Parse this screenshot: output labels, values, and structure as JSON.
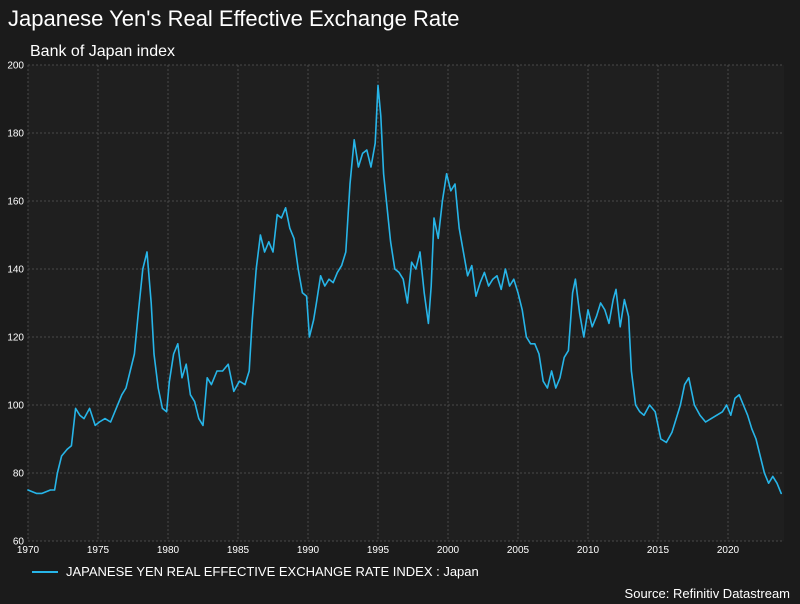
{
  "title": "Japanese Yen's Real Effective Exchange Rate",
  "subtitle": "Bank of Japan index",
  "source": "Source: Refinitiv Datastream",
  "colors": {
    "background": "#1b1b1b",
    "plot_background": "#1f1f1f",
    "grid": "#4a4a4a",
    "series": "#27b5e8"
  },
  "chart_data": {
    "type": "line",
    "title": "Japanese Yen's Real Effective Exchange Rate",
    "subtitle": "Bank of Japan index",
    "xlabel": "",
    "ylabel": "",
    "xlim": [
      1970,
      2024
    ],
    "ylim": [
      60,
      200
    ],
    "x_ticks": [
      1970,
      1975,
      1980,
      1985,
      1990,
      1995,
      2000,
      2005,
      2010,
      2015,
      2020
    ],
    "y_ticks": [
      60,
      80,
      100,
      120,
      140,
      160,
      180,
      200
    ],
    "grid": true,
    "legend_position": "bottom-left",
    "series": [
      {
        "name": "JAPANESE YEN REAL EFFECTIVE EXCHANGE RATE INDEX : Japan",
        "color": "#27b5e8",
        "x": [
          1970.0,
          1970.6,
          1971.0,
          1971.6,
          1971.9,
          1972.1,
          1972.4,
          1972.8,
          1973.1,
          1973.4,
          1973.7,
          1974.0,
          1974.4,
          1974.8,
          1975.1,
          1975.5,
          1975.9,
          1976.3,
          1976.7,
          1977.0,
          1977.3,
          1977.6,
          1977.9,
          1978.2,
          1978.5,
          1978.8,
          1979.0,
          1979.3,
          1979.6,
          1979.9,
          1980.1,
          1980.4,
          1980.7,
          1981.0,
          1981.3,
          1981.6,
          1981.9,
          1982.2,
          1982.5,
          1982.8,
          1983.1,
          1983.5,
          1983.9,
          1984.3,
          1984.7,
          1985.1,
          1985.5,
          1985.8,
          1986.0,
          1986.3,
          1986.6,
          1986.9,
          1987.2,
          1987.5,
          1987.8,
          1988.1,
          1988.4,
          1988.7,
          1989.0,
          1989.3,
          1989.6,
          1989.9,
          1990.1,
          1990.4,
          1990.6,
          1990.9,
          1991.2,
          1991.5,
          1991.8,
          1992.1,
          1992.4,
          1992.7,
          1993.0,
          1993.3,
          1993.6,
          1993.9,
          1994.2,
          1994.5,
          1994.8,
          1995.0,
          1995.2,
          1995.4,
          1995.6,
          1995.9,
          1996.2,
          1996.5,
          1996.8,
          1997.1,
          1997.4,
          1997.7,
          1998.0,
          1998.3,
          1998.6,
          1998.8,
          1999.0,
          1999.3,
          1999.6,
          1999.9,
          2000.2,
          2000.5,
          2000.8,
          2001.1,
          2001.4,
          2001.7,
          2002.0,
          2002.3,
          2002.6,
          2002.9,
          2003.2,
          2003.5,
          2003.8,
          2004.1,
          2004.4,
          2004.7,
          2005.0,
          2005.3,
          2005.6,
          2005.9,
          2006.2,
          2006.5,
          2006.8,
          2007.1,
          2007.4,
          2007.7,
          2008.0,
          2008.3,
          2008.6,
          2008.9,
          2009.1,
          2009.4,
          2009.7,
          2010.0,
          2010.3,
          2010.6,
          2010.9,
          2011.2,
          2011.5,
          2011.8,
          2012.0,
          2012.3,
          2012.6,
          2012.9,
          2013.1,
          2013.4,
          2013.7,
          2014.0,
          2014.4,
          2014.8,
          2015.2,
          2015.6,
          2016.0,
          2016.3,
          2016.6,
          2016.9,
          2017.2,
          2017.6,
          2018.0,
          2018.4,
          2018.8,
          2019.2,
          2019.6,
          2019.9,
          2020.2,
          2020.5,
          2020.8,
          2021.1,
          2021.4,
          2021.7,
          2022.0,
          2022.3,
          2022.6,
          2022.9,
          2023.2,
          2023.5,
          2023.8
        ],
        "values": [
          75,
          74,
          74,
          75,
          75,
          80,
          85,
          87,
          88,
          99,
          97,
          96,
          99,
          94,
          95,
          96,
          95,
          99,
          103,
          105,
          110,
          115,
          128,
          140,
          145,
          130,
          115,
          105,
          99,
          98,
          107,
          115,
          118,
          108,
          112,
          103,
          101,
          96,
          94,
          108,
          106,
          110,
          110,
          112,
          104,
          107,
          106,
          110,
          124,
          140,
          150,
          145,
          148,
          145,
          156,
          155,
          158,
          152,
          149,
          140,
          133,
          132,
          120,
          125,
          130,
          138,
          135,
          137,
          136,
          139,
          141,
          145,
          165,
          178,
          170,
          174,
          175,
          170,
          177,
          194,
          185,
          168,
          160,
          148,
          140,
          139,
          137,
          130,
          142,
          140,
          145,
          133,
          124,
          135,
          155,
          149,
          160,
          168,
          163,
          165,
          152,
          145,
          138,
          141,
          132,
          136,
          139,
          135,
          137,
          138,
          134,
          140,
          135,
          137,
          133,
          128,
          120,
          118,
          118,
          115,
          107,
          105,
          110,
          105,
          108,
          114,
          116,
          133,
          137,
          127,
          120,
          128,
          123,
          126,
          130,
          128,
          124,
          131,
          134,
          123,
          131,
          126,
          110,
          100,
          98,
          97,
          100,
          98,
          90,
          89,
          92,
          96,
          100,
          106,
          108,
          100,
          97,
          95,
          96,
          97,
          98,
          100,
          97,
          102,
          103,
          100,
          97,
          93,
          90,
          85,
          80,
          77,
          79,
          77,
          74
        ]
      }
    ]
  }
}
